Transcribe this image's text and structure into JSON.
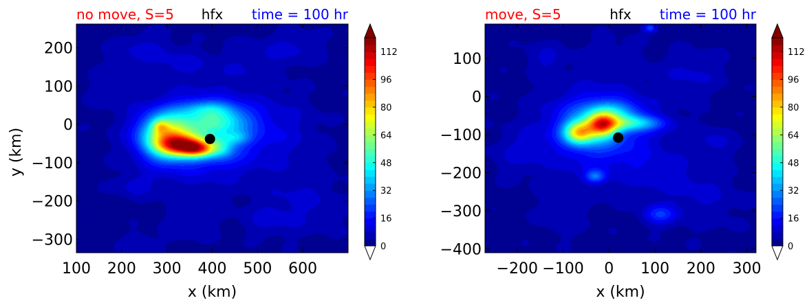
{
  "chart_data": [
    {
      "type": "heatmap",
      "title_left": "no move, S=5",
      "title_center": "hfx",
      "title_right": "time = 100 hr",
      "title_colors": [
        "#ff0000",
        "#000000",
        "#0000ff"
      ],
      "xlabel": "x (km)",
      "ylabel": "y (km)",
      "xlim": [
        100,
        700
      ],
      "ylim": [
        -335,
        262
      ],
      "xticks": [
        100,
        200,
        300,
        400,
        500,
        600
      ],
      "yticks": [
        -300,
        -200,
        -100,
        0,
        100,
        200
      ],
      "marker": {
        "x": 395,
        "y": -38
      },
      "blobs": [
        {
          "x": 390,
          "y": -30,
          "sx": 95,
          "sy": 75,
          "a": 18
        },
        {
          "x": 380,
          "y": -20,
          "sx": 55,
          "sy": 50,
          "a": 14
        },
        {
          "x": 300,
          "y": -30,
          "sx": 40,
          "sy": 40,
          "a": 60
        },
        {
          "x": 335,
          "y": -55,
          "sx": 35,
          "sy": 18,
          "a": 60
        },
        {
          "x": 370,
          "y": -65,
          "sx": 25,
          "sy": 14,
          "a": 45
        },
        {
          "x": 285,
          "y": -5,
          "sx": 12,
          "sy": 12,
          "a": 22
        },
        {
          "x": 420,
          "y": 10,
          "sx": 45,
          "sy": 25,
          "a": 22
        },
        {
          "x": 390,
          "y": 40,
          "sx": 40,
          "sy": 15,
          "a": 16
        },
        {
          "x": 420,
          "y": -60,
          "sx": 20,
          "sy": 20,
          "a": 18
        },
        {
          "x": 455,
          "y": -35,
          "sx": 20,
          "sy": 12,
          "a": 14
        },
        {
          "x": 550,
          "y": -10,
          "sx": 60,
          "sy": 60,
          "a": 5
        },
        {
          "x": 250,
          "y": 195,
          "sx": 45,
          "sy": 30,
          "a": 7
        },
        {
          "x": 340,
          "y": 160,
          "sx": 40,
          "sy": 25,
          "a": 6
        },
        {
          "x": 480,
          "y": 160,
          "sx": 50,
          "sy": 40,
          "a": 5
        },
        {
          "x": 580,
          "y": 200,
          "sx": 45,
          "sy": 30,
          "a": 6
        },
        {
          "x": 230,
          "y": -160,
          "sx": 30,
          "sy": 20,
          "a": 7
        },
        {
          "x": 350,
          "y": -250,
          "sx": 40,
          "sy": 40,
          "a": 5
        },
        {
          "x": 600,
          "y": -200,
          "sx": 60,
          "sy": 60,
          "a": 6
        },
        {
          "x": 180,
          "y": 100,
          "sx": 40,
          "sy": 40,
          "a": 4
        },
        {
          "x": 240,
          "y": -310,
          "sx": 30,
          "sy": 20,
          "a": 5
        },
        {
          "x": 520,
          "y": -250,
          "sx": 40,
          "sy": 30,
          "a": 5
        }
      ],
      "colorbar": {
        "min": 0,
        "max": 120,
        "ticks": [
          0,
          16,
          32,
          48,
          64,
          80,
          96,
          112
        ],
        "extend": "both"
      }
    },
    {
      "type": "heatmap",
      "title_left": "move, S=5",
      "title_center": "hfx",
      "title_right": "time = 100 hr",
      "title_colors": [
        "#ff0000",
        "#000000",
        "#0000ff"
      ],
      "xlabel": "x (km)",
      "ylabel": "",
      "xlim": [
        -270,
        320
      ],
      "ylim": [
        -410,
        190
      ],
      "xticks": [
        -200,
        -100,
        0,
        100,
        200,
        300
      ],
      "yticks": [
        -400,
        -300,
        -200,
        -100,
        0,
        100
      ],
      "marker": {
        "x": 20,
        "y": -108
      },
      "blobs": [
        {
          "x": -20,
          "y": -100,
          "sx": 90,
          "sy": 80,
          "a": 15
        },
        {
          "x": -30,
          "y": -70,
          "sx": 55,
          "sy": 45,
          "a": 18
        },
        {
          "x": -65,
          "y": -95,
          "sx": 22,
          "sy": 20,
          "a": 55
        },
        {
          "x": -15,
          "y": -75,
          "sx": 22,
          "sy": 22,
          "a": 60
        },
        {
          "x": 45,
          "y": -70,
          "sx": 50,
          "sy": 14,
          "a": 30
        },
        {
          "x": 10,
          "y": -40,
          "sx": 40,
          "sy": 20,
          "a": 18
        },
        {
          "x": -30,
          "y": -210,
          "sx": 15,
          "sy": 12,
          "a": 20
        },
        {
          "x": 110,
          "y": -310,
          "sx": 25,
          "sy": 18,
          "a": 16
        },
        {
          "x": 200,
          "y": -260,
          "sx": 60,
          "sy": 60,
          "a": 6
        },
        {
          "x": 90,
          "y": 180,
          "sx": 10,
          "sy": 8,
          "a": 20
        },
        {
          "x": -140,
          "y": 100,
          "sx": 30,
          "sy": 30,
          "a": 6
        },
        {
          "x": 180,
          "y": 60,
          "sx": 50,
          "sy": 40,
          "a": 6
        },
        {
          "x": -200,
          "y": -150,
          "sx": 40,
          "sy": 40,
          "a": 5
        },
        {
          "x": 100,
          "y": -200,
          "sx": 50,
          "sy": 40,
          "a": 5
        },
        {
          "x": 230,
          "y": -120,
          "sx": 30,
          "sy": 30,
          "a": 6
        },
        {
          "x": -100,
          "y": -320,
          "sx": 40,
          "sy": 40,
          "a": 4
        },
        {
          "x": 0,
          "y": 100,
          "sx": 50,
          "sy": 40,
          "a": 4
        }
      ],
      "colorbar": {
        "min": 0,
        "max": 120,
        "ticks": [
          0,
          16,
          32,
          48,
          64,
          80,
          96,
          112
        ],
        "extend": "both"
      }
    }
  ]
}
